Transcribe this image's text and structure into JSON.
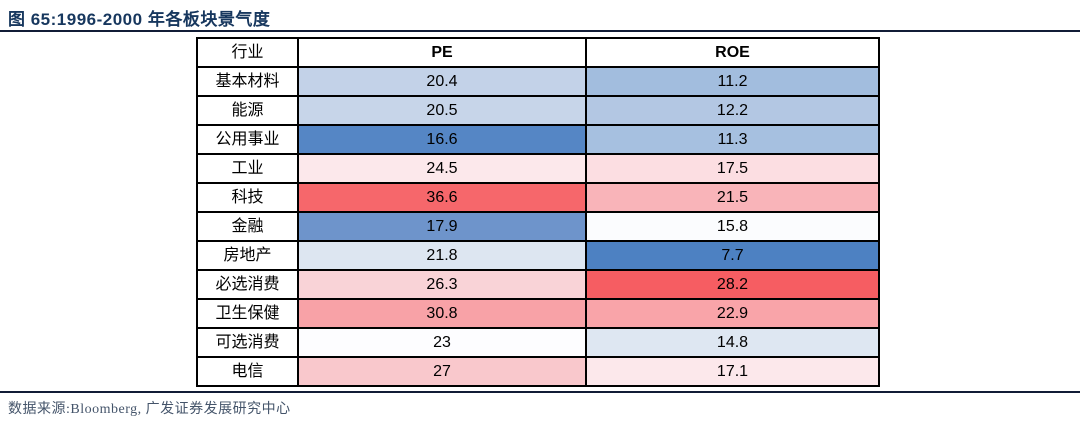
{
  "header": {
    "title": "图 65:1996-2000 年各板块景气度",
    "title_color": "#17375e"
  },
  "footer": {
    "source": "数据来源:Bloomberg, 广发证券发展研究中心",
    "text_color": "#44546a"
  },
  "chart_data": {
    "type": "heatmap",
    "title": "图 65:1996-2000 年各板块景气度",
    "columns": [
      "行业",
      "PE",
      "ROE"
    ],
    "rows": [
      {
        "industry": "基本材料",
        "pe": "20.4",
        "roe": "11.2",
        "pe_color": "#c3d2e8",
        "roe_color": "#a2bdde"
      },
      {
        "industry": "能源",
        "pe": "20.5",
        "roe": "12.2",
        "pe_color": "#c7d5e9",
        "roe_color": "#b3c7e3"
      },
      {
        "industry": "公用事业",
        "pe": "16.6",
        "roe": "11.3",
        "pe_color": "#5586c5",
        "roe_color": "#a6c0e0"
      },
      {
        "industry": "工业",
        "pe": "24.5",
        "roe": "17.5",
        "pe_color": "#fce8eb",
        "roe_color": "#fcdee2"
      },
      {
        "industry": "科技",
        "pe": "36.6",
        "roe": "21.5",
        "pe_color": "#f6676b",
        "roe_color": "#f9b4b9"
      },
      {
        "industry": "金融",
        "pe": "17.9",
        "roe": "15.8",
        "pe_color": "#6e94cb",
        "roe_color": "#fbfcfe"
      },
      {
        "industry": "房地产",
        "pe": "21.8",
        "roe": "7.7",
        "pe_color": "#dde6f1",
        "roe_color": "#4d81c2"
      },
      {
        "industry": "必选消费",
        "pe": "26.3",
        "roe": "28.2",
        "pe_color": "#f9d3d7",
        "roe_color": "#f65d62"
      },
      {
        "industry": "卫生保健",
        "pe": "30.8",
        "roe": "22.9",
        "pe_color": "#f8a2a7",
        "roe_color": "#f9a4a9"
      },
      {
        "industry": "可选消费",
        "pe": "23",
        "roe": "14.8",
        "pe_color": "#fdfdff",
        "roe_color": "#dee7f2"
      },
      {
        "industry": "电信",
        "pe": "27",
        "roe": "17.1",
        "pe_color": "#f9c8cc",
        "roe_color": "#fce8eb"
      }
    ],
    "color_scale": {
      "style": "per-column red-white-blue diverging",
      "high_color": "#f6676b",
      "low_color": "#4d81c2",
      "mid_color": "#ffffff"
    },
    "source": "数据来源:Bloomberg, 广发证券发展研究中心",
    "legend_position": "none",
    "grid": true
  }
}
